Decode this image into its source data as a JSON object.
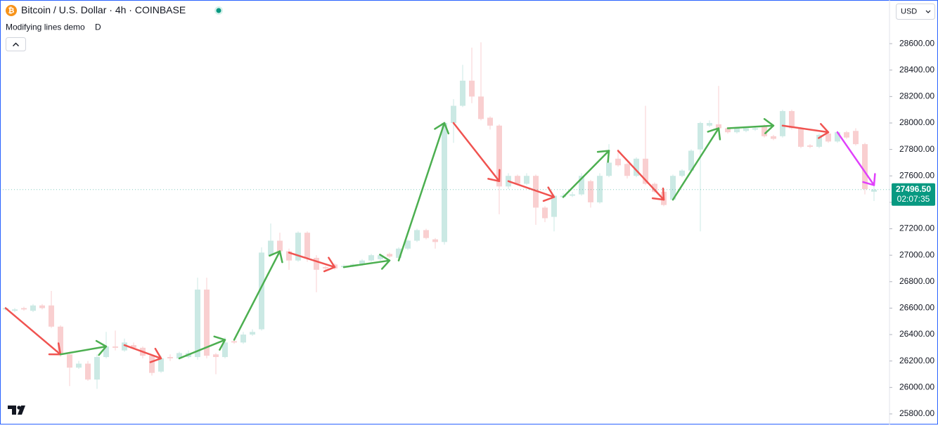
{
  "header": {
    "icon": "₿",
    "symbol": "Bitcoin / U.S. Dollar · 4h · COINBASE",
    "indicator": "Modifying lines demo",
    "indicator_suffix": "D",
    "currency": "USD"
  },
  "chart_data": {
    "type": "candlestick",
    "up_color": "#cbe9e4",
    "down_color": "#f9cfd0",
    "open": [
      26590,
      26580,
      26600,
      26580,
      26620,
      26620,
      26460,
      26250,
      26150,
      26180,
      26060,
      26230,
      26310,
      26280,
      26320,
      26300,
      26240,
      26120,
      26230,
      26220,
      26230,
      26230,
      26740,
      26250,
      26230,
      26350,
      26340,
      26400,
      26440,
      27000,
      27110,
      27030,
      26960,
      27170,
      26980,
      26910,
      26930,
      26910,
      26920,
      26930,
      26960,
      26970,
      27010,
      26980,
      27050,
      27110,
      27190,
      27120,
      27100,
      28000,
      28130,
      28320,
      28200,
      28040,
      27980,
      27520,
      27600,
      27540,
      27600,
      27360,
      27290,
      27440,
      27450,
      27460,
      27560,
      27400,
      27600,
      27730,
      27690,
      27600,
      27730,
      27540,
      27480,
      27420,
      27600,
      27640,
      27800,
      27980,
      27990,
      27960,
      27930,
      27940,
      27950,
      27980,
      27900,
      27900,
      28090,
      27960,
      27830,
      27820,
      27920,
      27860,
      27930,
      27940,
      27840,
      27480
    ],
    "high": [
      26610,
      26600,
      26610,
      26630,
      26630,
      26730,
      26470,
      26270,
      26200,
      26200,
      26250,
      26420,
      26430,
      26370,
      26340,
      26310,
      26250,
      26240,
      26250,
      26270,
      26280,
      26830,
      26830,
      26260,
      26380,
      26370,
      26420,
      26440,
      27060,
      27240,
      27170,
      27050,
      27180,
      27180,
      27000,
      26920,
      26940,
      26930,
      26940,
      26970,
      27010,
      27010,
      27020,
      27060,
      27120,
      27200,
      27200,
      27130,
      28010,
      28180,
      28440,
      28570,
      28610,
      28050,
      27990,
      27620,
      27610,
      27620,
      27610,
      27370,
      27460,
      27470,
      27480,
      27620,
      27570,
      27620,
      27840,
      27800,
      27700,
      27740,
      28130,
      27550,
      27490,
      27610,
      27650,
      27800,
      28010,
      28020,
      28280,
      27970,
      27970,
      27970,
      27970,
      27990,
      27910,
      28100,
      28100,
      27970,
      27840,
      27920,
      27930,
      27940,
      27940,
      27960,
      27850,
      27540
    ],
    "low": [
      26580,
      26570,
      26580,
      26570,
      26590,
      26450,
      26230,
      26010,
      26140,
      26050,
      25990,
      26220,
      26280,
      26270,
      26290,
      26220,
      26090,
      26110,
      26200,
      26210,
      26220,
      26210,
      26220,
      26100,
      26220,
      26330,
      26330,
      26390,
      26430,
      26990,
      27000,
      26890,
      26950,
      26950,
      26720,
      26880,
      26890,
      26900,
      26910,
      26920,
      26950,
      26960,
      26980,
      26970,
      27040,
      27100,
      27120,
      27050,
      27080,
      27850,
      28120,
      28150,
      28020,
      27950,
      27310,
      27500,
      27530,
      27530,
      27230,
      27250,
      27180,
      27430,
      27440,
      27450,
      27360,
      27390,
      27590,
      27670,
      27580,
      27590,
      27530,
      27470,
      27370,
      27410,
      27590,
      27630,
      27180,
      27970,
      27950,
      27920,
      27920,
      27930,
      27940,
      27890,
      27870,
      27890,
      27950,
      27810,
      27810,
      27810,
      27850,
      27850,
      27880,
      27830,
      27460,
      27410
    ],
    "close": [
      26600,
      26590,
      26590,
      26620,
      26600,
      26460,
      26250,
      26150,
      26180,
      26060,
      26230,
      26310,
      26300,
      26340,
      26300,
      26240,
      26110,
      26220,
      26220,
      26260,
      26260,
      26740,
      26240,
      26230,
      26340,
      26340,
      26400,
      26420,
      27020,
      27110,
      27030,
      26960,
      27170,
      26980,
      26890,
      26900,
      26900,
      26920,
      26930,
      26960,
      27000,
      27000,
      26990,
      27050,
      27110,
      27190,
      27130,
      27100,
      28000,
      28130,
      28320,
      28200,
      28030,
      27980,
      27520,
      27600,
      27540,
      27600,
      27360,
      27280,
      27450,
      27450,
      27460,
      27600,
      27400,
      27600,
      27700,
      27680,
      27600,
      27730,
      27540,
      27480,
      27380,
      27600,
      27640,
      27790,
      28000,
      28000,
      27960,
      27930,
      27960,
      27960,
      27960,
      27900,
      27880,
      28090,
      27960,
      27820,
      27820,
      27910,
      27860,
      27930,
      27890,
      27840,
      27500,
      27496.5
    ],
    "arrows": [
      {
        "x": [
          0,
          6
        ],
        "y": [
          26600,
          26250
        ],
        "color": "#f05350"
      },
      {
        "x": [
          6,
          11
        ],
        "y": [
          26250,
          26310
        ],
        "color": "#4caf50"
      },
      {
        "x": [
          13,
          17
        ],
        "y": [
          26320,
          26220
        ],
        "color": "#f05350"
      },
      {
        "x": [
          19,
          24
        ],
        "y": [
          26220,
          26360
        ],
        "color": "#4caf50"
      },
      {
        "x": [
          25,
          30
        ],
        "y": [
          26360,
          27030
        ],
        "color": "#4caf50"
      },
      {
        "x": [
          31,
          36
        ],
        "y": [
          27020,
          26910
        ],
        "color": "#f05350"
      },
      {
        "x": [
          37,
          42
        ],
        "y": [
          26910,
          26960
        ],
        "color": "#4caf50"
      },
      {
        "x": [
          43,
          48
        ],
        "y": [
          26960,
          28000
        ],
        "color": "#4caf50"
      },
      {
        "x": [
          49,
          54
        ],
        "y": [
          28000,
          27560
        ],
        "color": "#f05350"
      },
      {
        "x": [
          55,
          60
        ],
        "y": [
          27560,
          27440
        ],
        "color": "#f05350"
      },
      {
        "x": [
          61,
          66
        ],
        "y": [
          27440,
          27790
        ],
        "color": "#4caf50"
      },
      {
        "x": [
          67,
          72
        ],
        "y": [
          27790,
          27420
        ],
        "color": "#f05350"
      },
      {
        "x": [
          73,
          78
        ],
        "y": [
          27420,
          27960
        ],
        "color": "#4caf50"
      },
      {
        "x": [
          79,
          84
        ],
        "y": [
          27960,
          27980
        ],
        "color": "#4caf50"
      },
      {
        "x": [
          85,
          90
        ],
        "y": [
          27980,
          27930
        ],
        "color": "#f05350"
      },
      {
        "x": [
          91,
          95
        ],
        "y": [
          27930,
          27530
        ],
        "color": "#e040fb"
      }
    ],
    "ylim": [
      25720,
      28930
    ],
    "yticks": [
      {
        "value": 25800,
        "label": "25800.00"
      },
      {
        "value": 26000,
        "label": "26000.00"
      },
      {
        "value": 26200,
        "label": "26200.00"
      },
      {
        "value": 26400,
        "label": "26400.00"
      },
      {
        "value": 26600,
        "label": "26600.00"
      },
      {
        "value": 26800,
        "label": "26800.00"
      },
      {
        "value": 27000,
        "label": "27000.00"
      },
      {
        "value": 27200,
        "label": "27200.00"
      },
      {
        "value": 27400,
        "label": "27400.00"
      },
      {
        "value": 27600,
        "label": "27600.00"
      },
      {
        "value": 27800,
        "label": "27800.00"
      },
      {
        "value": 28000,
        "label": "28000.00"
      },
      {
        "value": 28200,
        "label": "28200.00"
      },
      {
        "value": 28400,
        "label": "28400.00"
      },
      {
        "value": 28600,
        "label": "28600.00"
      }
    ],
    "last_price": {
      "value": 27496.5,
      "label": "27496.50"
    },
    "countdown": "02:07:35",
    "last_price_color": "#089981"
  }
}
